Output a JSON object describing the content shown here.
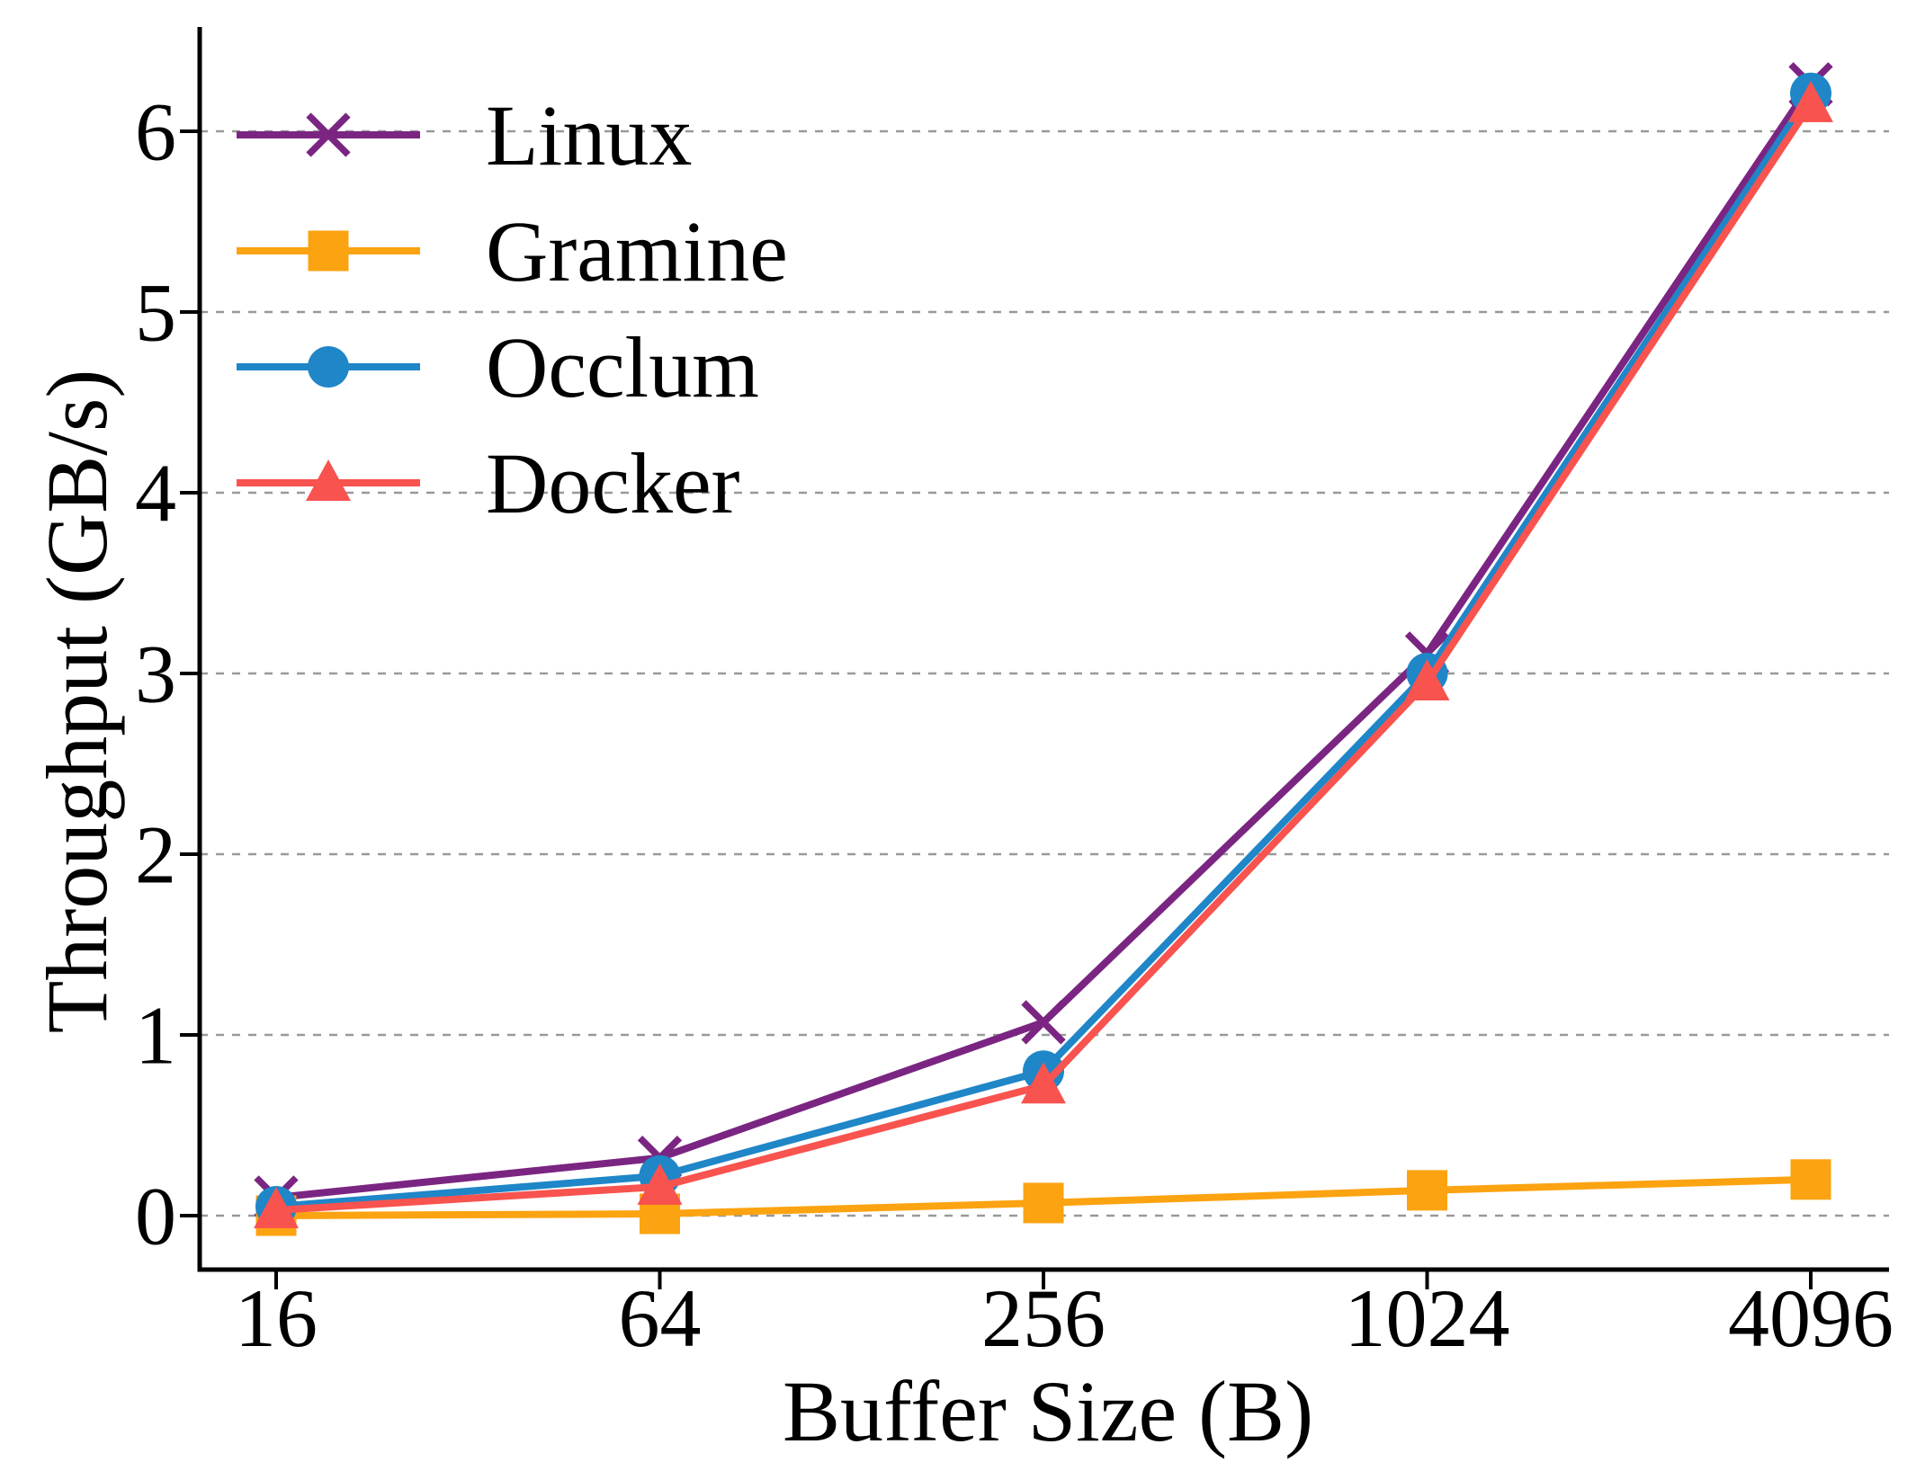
{
  "figure": {
    "background": "#ffffff",
    "text_color": "#000000",
    "grid_color": "#999999"
  },
  "chart_data": {
    "type": "line",
    "title": "",
    "xlabel": "Buffer Size (B)",
    "ylabel": "Throughput (GB/s)",
    "categories": [
      "16",
      "64",
      "256",
      "1024",
      "4096"
    ],
    "yticks": [
      0,
      1,
      2,
      3,
      4,
      5,
      6
    ],
    "ylim": [
      -0.3,
      6.58
    ],
    "grid": {
      "axis": "y",
      "style": "dashed",
      "on": true
    },
    "legend": {
      "position": "upper-left",
      "frame": false,
      "entries": [
        "Linux",
        "Gramine",
        "Occlum",
        "Docker"
      ]
    },
    "series": [
      {
        "name": "Linux",
        "color": "#7B2582",
        "marker": "x",
        "values": [
          0.1,
          0.32,
          1.07,
          3.11,
          6.26
        ]
      },
      {
        "name": "Gramine",
        "color": "#FCA311",
        "marker": "square",
        "values": [
          0.0,
          0.01,
          0.07,
          0.14,
          0.2
        ]
      },
      {
        "name": "Occlum",
        "color": "#1F86C8",
        "marker": "circle",
        "values": [
          0.05,
          0.22,
          0.8,
          3.0,
          6.21
        ]
      },
      {
        "name": "Docker",
        "color": "#F8534F",
        "marker": "triangle-up",
        "values": [
          0.03,
          0.16,
          0.72,
          2.95,
          6.15
        ]
      }
    ]
  }
}
